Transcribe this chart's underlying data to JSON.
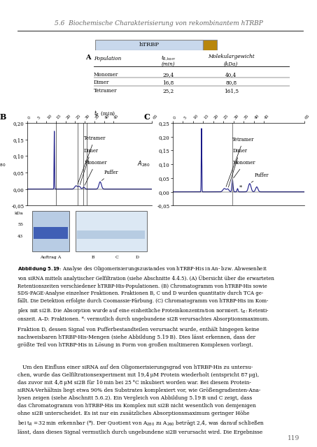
{
  "title_header": "5.6  Biochemische Charakterisierung von rekombinantem hTRBP",
  "page_number": "119",
  "protein_bar_label": "hTRBP",
  "table_rows": [
    [
      "Monomer",
      "29,4",
      "40,4"
    ],
    [
      "Dimer",
      "16,8",
      "80,8"
    ],
    [
      "Tetramer",
      "25,2",
      "161,5"
    ]
  ],
  "xticks": [
    0,
    5,
    10,
    15,
    20,
    25,
    30,
    35,
    40,
    45,
    65
  ],
  "yticks_B": [
    -0.05,
    0.0,
    0.05,
    0.1,
    0.15,
    0.2
  ],
  "yticks_C": [
    -0.05,
    0.0,
    0.05,
    0.1,
    0.15,
    0.2,
    0.25
  ],
  "line_color": "#1a1a88",
  "bar_main_color": "#c8d8ec",
  "bar_tag_color": "#b8860b",
  "gel_left_bg": "#b8cce4",
  "gel_right_bg": "#dce8f4",
  "gel_band_color": "#2244aa",
  "gel_band_right_color": "#8aaace",
  "header_color": "#666666",
  "frac_line_color": "#333333",
  "monomer_line_color": "#888888"
}
